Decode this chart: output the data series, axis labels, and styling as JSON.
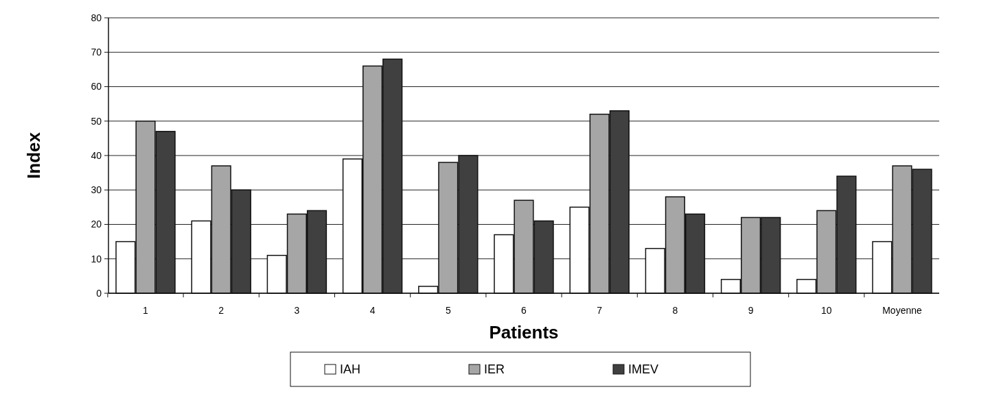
{
  "chart_data": {
    "type": "bar",
    "xlabel": "Patients",
    "ylabel": "Index",
    "categories": [
      "1",
      "2",
      "3",
      "4",
      "5",
      "6",
      "7",
      "8",
      "9",
      "10",
      "Moyenne"
    ],
    "series": [
      {
        "name": "IAH",
        "color": "#ffffff",
        "values": [
          15,
          21,
          11,
          39,
          2,
          17,
          25,
          13,
          4,
          4,
          15
        ]
      },
      {
        "name": "IER",
        "color": "#a6a6a6",
        "values": [
          50,
          37,
          23,
          66,
          38,
          27,
          52,
          28,
          22,
          24,
          37
        ]
      },
      {
        "name": "IMEV",
        "color": "#404040",
        "values": [
          47,
          30,
          24,
          68,
          40,
          21,
          53,
          23,
          22,
          34,
          36
        ]
      }
    ],
    "ylim": [
      0,
      80
    ],
    "yticks": [
      0,
      10,
      20,
      30,
      40,
      50,
      60,
      70,
      80
    ],
    "grid": "y",
    "legend": "bottom"
  }
}
